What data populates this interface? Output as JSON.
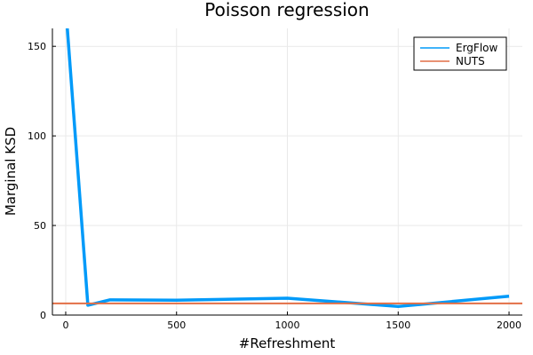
{
  "chart_data": {
    "type": "line",
    "title": "Poisson regression",
    "xlabel": "#Refreshment",
    "ylabel": "Marginal KSD",
    "xlim": [
      -60,
      2060
    ],
    "ylim": [
      0,
      160
    ],
    "x_ticks": [
      0,
      500,
      1000,
      1500,
      2000
    ],
    "y_ticks": [
      0,
      50,
      100,
      150
    ],
    "grid": true,
    "legend_position": "top-right",
    "series": [
      {
        "name": "ErgFlow",
        "color": "#009AF9",
        "x": [
          0,
          100,
          200,
          500,
          1000,
          1500,
          2000
        ],
        "y": [
          172,
          5.5,
          8.5,
          8.3,
          9.4,
          4.8,
          10.5
        ]
      },
      {
        "name": "NUTS",
        "color": "#E26F46",
        "x": [
          -60,
          2060
        ],
        "y": [
          6.5,
          6.5
        ]
      }
    ]
  }
}
